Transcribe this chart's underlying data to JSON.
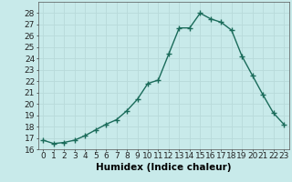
{
  "x": [
    0,
    1,
    2,
    3,
    4,
    5,
    6,
    7,
    8,
    9,
    10,
    11,
    12,
    13,
    14,
    15,
    16,
    17,
    18,
    19,
    20,
    21,
    22,
    23
  ],
  "y": [
    16.8,
    16.5,
    16.6,
    16.8,
    17.2,
    17.7,
    18.2,
    18.6,
    19.4,
    20.4,
    21.8,
    22.1,
    24.4,
    26.7,
    26.7,
    28.0,
    27.5,
    27.2,
    26.5,
    24.2,
    22.5,
    20.8,
    19.2,
    18.2
  ],
  "xlabel": "Humidex (Indice chaleur)",
  "bg_color": "#c8eaea",
  "grid_color": "#b8dada",
  "line_color": "#1a6b5a",
  "marker_color": "#1a6b5a",
  "ylim": [
    16,
    29
  ],
  "xlim": [
    -0.5,
    23.5
  ],
  "yticks": [
    16,
    17,
    18,
    19,
    20,
    21,
    22,
    23,
    24,
    25,
    26,
    27,
    28
  ],
  "xticks": [
    0,
    1,
    2,
    3,
    4,
    5,
    6,
    7,
    8,
    9,
    10,
    11,
    12,
    13,
    14,
    15,
    16,
    17,
    18,
    19,
    20,
    21,
    22,
    23
  ],
  "xtick_labels": [
    "0",
    "1",
    "2",
    "3",
    "4",
    "5",
    "6",
    "7",
    "8",
    "9",
    "10",
    "11",
    "12",
    "13",
    "14",
    "15",
    "16",
    "17",
    "18",
    "19",
    "20",
    "21",
    "22",
    "23"
  ],
  "xlabel_fontsize": 7.5,
  "tick_fontsize": 6.5,
  "line_width": 1.0,
  "marker_size": 4
}
